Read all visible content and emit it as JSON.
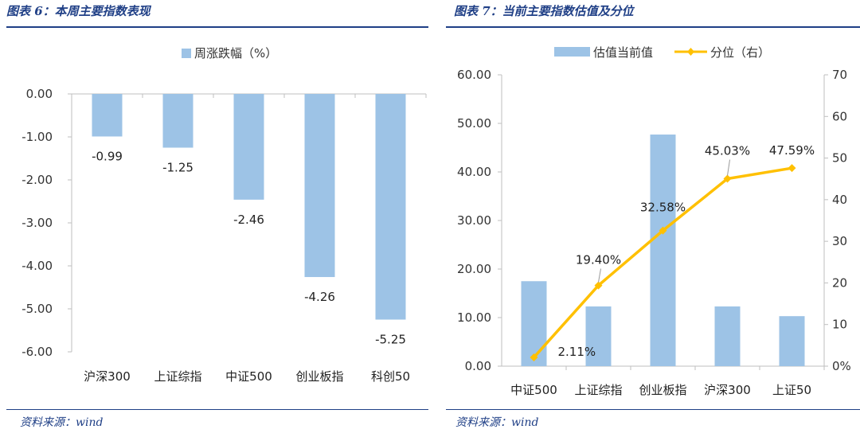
{
  "left": {
    "title": "图表 6：本周主要指数表现",
    "source": "资料来源：wind"
  },
  "right": {
    "title": "图表 7：当前主要指数估值及分位",
    "source": "资料来源：wind"
  },
  "colors": {
    "bar": "#9dc3e6",
    "line": "#ffc000",
    "title": "#1f3f86",
    "axis": "#bfbfbf"
  },
  "chart_data": [
    {
      "type": "bar",
      "categories": [
        "沪深300",
        "上证综指",
        "中证500",
        "创业板指",
        "科创50"
      ],
      "series": [
        {
          "name": "周涨跌幅（%）",
          "values": [
            -0.99,
            -1.25,
            -2.46,
            -4.26,
            -5.25
          ]
        }
      ],
      "data_labels": [
        "-0.99",
        "-1.25",
        "-2.46",
        "-4.26",
        "-5.25"
      ],
      "y_ticks": [
        "0.00",
        "-1.00",
        "-2.00",
        "-3.00",
        "-4.00",
        "-5.00",
        "-6.00"
      ],
      "ylim": [
        -6,
        0
      ],
      "legend_position": "top",
      "grid": false
    },
    {
      "type": "bar+line",
      "categories": [
        "中证500",
        "上证综指",
        "创业板指",
        "沪深300",
        "上证50"
      ],
      "series": [
        {
          "name": "估值当前值",
          "type": "bar",
          "axis": "left",
          "values": [
            17.5,
            12.3,
            47.7,
            12.3,
            10.3
          ]
        },
        {
          "name": "分位（右）",
          "type": "line",
          "axis": "right",
          "values": [
            2.11,
            19.4,
            32.58,
            45.03,
            47.59
          ],
          "labels": [
            "2.11%",
            "19.40%",
            "32.58%",
            "45.03%",
            "47.59%"
          ]
        }
      ],
      "y_ticks": [
        "60.00",
        "50.00",
        "40.00",
        "30.00",
        "20.00",
        "10.00",
        "0.00"
      ],
      "ylim": [
        0,
        60
      ],
      "y2_ticks": [
        "70",
        "60",
        "50",
        "40",
        "30",
        "20",
        "10",
        "0%"
      ],
      "y2lim": [
        0,
        70
      ],
      "legend_position": "top",
      "grid": false
    }
  ]
}
